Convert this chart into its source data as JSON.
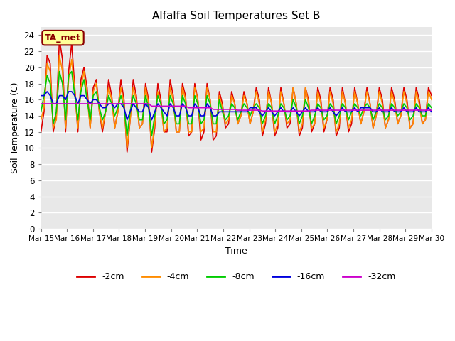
{
  "title": "Alfalfa Soil Temperatures Set B",
  "xlabel": "Time",
  "ylabel": "Soil Temperature (C)",
  "ylim": [
    0,
    25
  ],
  "yticks": [
    0,
    2,
    4,
    6,
    8,
    10,
    12,
    14,
    16,
    18,
    20,
    22,
    24
  ],
  "bg_color": "#e8e8e8",
  "fig_color": "#ffffff",
  "annotation_text": "TA_met",
  "annotation_bg": "#ffff99",
  "annotation_border": "#8b0000",
  "series_colors": {
    "-2cm": "#dd0000",
    "-4cm": "#ff8c00",
    "-8cm": "#00cc00",
    "-16cm": "#0000dd",
    "-32cm": "#cc00cc"
  },
  "legend_labels": [
    "-2cm",
    "-4cm",
    "-8cm",
    "-16cm",
    "-32cm"
  ],
  "x_tick_labels": [
    "Mar 15",
    "Mar 16",
    "Mar 17",
    "Mar 18",
    "Mar 19",
    "Mar 20",
    "Mar 21",
    "Mar 22",
    "Mar 23",
    "Mar 24",
    "Mar 25",
    "Mar 26",
    "Mar 27",
    "Mar 28",
    "Mar 29",
    "Mar 30"
  ],
  "n_days": 16,
  "points_per_day": 8,
  "t_2cm": [
    12.0,
    14.5,
    21.5,
    20.5,
    12.0,
    14.0,
    23.5,
    21.0,
    12.0,
    19.5,
    23.0,
    17.5,
    12.0,
    18.5,
    20.0,
    17.5,
    12.5,
    17.5,
    18.5,
    14.5,
    12.0,
    14.5,
    18.5,
    16.5,
    12.5,
    14.5,
    18.5,
    16.0,
    9.5,
    13.5,
    18.5,
    16.5,
    12.5,
    13.0,
    18.0,
    16.0,
    9.5,
    12.5,
    18.0,
    16.0,
    12.0,
    12.0,
    18.5,
    16.5,
    12.0,
    12.0,
    18.0,
    16.5,
    11.5,
    12.0,
    18.0,
    16.0,
    11.0,
    12.0,
    18.0,
    16.0,
    11.0,
    11.5,
    17.0,
    15.5,
    12.5,
    13.0,
    17.0,
    15.5,
    13.0,
    14.0,
    17.0,
    15.5,
    13.0,
    14.5,
    17.5,
    16.0,
    11.5,
    13.0,
    17.5,
    15.5,
    11.5,
    12.5,
    17.5,
    15.5,
    12.5,
    13.0,
    17.5,
    15.5,
    11.5,
    12.5,
    17.5,
    16.0,
    12.0,
    13.0,
    17.5,
    16.0,
    12.0,
    13.5,
    17.5,
    16.0,
    11.5,
    12.5,
    17.5,
    15.5,
    12.0,
    13.0,
    17.5,
    15.5,
    13.0,
    14.5,
    17.5,
    15.5,
    12.5,
    14.0,
    17.5,
    16.0,
    12.5,
    13.5,
    17.5,
    16.0,
    13.0,
    14.0,
    17.5,
    16.0,
    12.5,
    13.0,
    17.5,
    16.0,
    13.0,
    13.5,
    17.5,
    16.5
  ],
  "t_4cm": [
    13.5,
    15.0,
    20.5,
    19.5,
    12.5,
    13.5,
    21.5,
    19.5,
    12.5,
    18.5,
    21.0,
    17.0,
    12.5,
    17.5,
    19.5,
    16.5,
    12.5,
    17.0,
    18.0,
    14.5,
    12.5,
    14.5,
    17.5,
    16.0,
    12.5,
    14.5,
    17.5,
    15.5,
    10.0,
    13.5,
    17.5,
    16.0,
    12.5,
    13.0,
    17.5,
    15.5,
    10.0,
    13.0,
    17.0,
    15.5,
    12.0,
    12.5,
    17.5,
    16.0,
    12.0,
    12.0,
    17.5,
    16.0,
    12.0,
    12.0,
    17.5,
    16.0,
    12.0,
    12.5,
    17.5,
    16.0,
    12.0,
    12.0,
    16.5,
    15.0,
    13.0,
    13.5,
    16.5,
    15.5,
    13.0,
    14.0,
    16.5,
    15.5,
    13.0,
    14.5,
    17.0,
    15.5,
    12.0,
    13.5,
    17.0,
    15.5,
    12.0,
    13.0,
    17.0,
    15.5,
    13.0,
    13.5,
    17.5,
    15.5,
    12.0,
    13.0,
    17.5,
    15.5,
    12.5,
    13.0,
    17.0,
    15.5,
    12.5,
    13.5,
    17.0,
    15.5,
    12.0,
    13.0,
    17.0,
    15.5,
    12.5,
    13.5,
    17.0,
    15.5,
    13.0,
    14.5,
    17.0,
    15.5,
    12.5,
    14.0,
    17.0,
    15.5,
    12.5,
    13.5,
    17.0,
    15.5,
    13.0,
    14.0,
    17.0,
    15.5,
    12.5,
    13.0,
    17.0,
    15.5,
    13.0,
    13.5,
    17.0,
    16.0
  ],
  "t_8cm": [
    14.5,
    16.5,
    19.0,
    18.0,
    13.0,
    14.5,
    19.5,
    18.0,
    13.5,
    19.0,
    19.5,
    16.5,
    13.5,
    17.0,
    18.5,
    16.0,
    13.5,
    16.5,
    17.0,
    15.0,
    13.5,
    14.5,
    16.5,
    15.5,
    14.0,
    15.0,
    16.5,
    15.0,
    11.5,
    14.5,
    16.5,
    15.5,
    13.5,
    13.5,
    16.5,
    15.0,
    11.5,
    14.0,
    16.5,
    15.5,
    13.0,
    13.5,
    16.5,
    15.5,
    13.0,
    13.0,
    16.5,
    15.5,
    13.0,
    13.0,
    16.5,
    15.5,
    13.0,
    13.5,
    16.5,
    15.5,
    13.0,
    13.0,
    16.0,
    14.5,
    13.5,
    14.0,
    15.5,
    15.0,
    13.5,
    14.5,
    15.5,
    15.0,
    14.0,
    15.0,
    15.5,
    15.0,
    13.0,
    14.0,
    15.5,
    15.0,
    13.0,
    14.0,
    15.5,
    15.0,
    13.5,
    14.0,
    16.0,
    15.0,
    13.0,
    14.0,
    16.0,
    15.0,
    13.0,
    14.0,
    15.5,
    15.0,
    13.5,
    14.0,
    15.5,
    15.0,
    13.0,
    14.0,
    15.5,
    15.0,
    13.5,
    14.5,
    15.5,
    15.0,
    14.0,
    15.0,
    15.5,
    15.0,
    13.5,
    14.5,
    15.5,
    15.0,
    13.5,
    14.0,
    15.5,
    15.0,
    14.0,
    14.5,
    15.5,
    15.0,
    13.5,
    14.0,
    15.5,
    15.0,
    14.0,
    14.0,
    15.5,
    15.0
  ],
  "t_16cm": [
    16.5,
    16.5,
    17.0,
    16.5,
    15.5,
    15.5,
    16.5,
    16.5,
    16.0,
    17.0,
    17.0,
    16.5,
    15.5,
    16.5,
    16.5,
    16.0,
    15.5,
    16.0,
    16.0,
    15.5,
    15.0,
    15.0,
    15.5,
    15.5,
    15.0,
    15.5,
    15.5,
    15.0,
    13.5,
    14.5,
    15.5,
    15.0,
    14.5,
    14.5,
    15.5,
    15.0,
    13.5,
    14.5,
    15.5,
    15.0,
    14.5,
    14.0,
    15.5,
    15.0,
    14.0,
    14.0,
    15.5,
    15.0,
    14.0,
    14.0,
    15.5,
    15.0,
    14.0,
    14.0,
    15.5,
    15.0,
    14.0,
    14.0,
    14.5,
    14.5,
    14.5,
    14.5,
    14.5,
    14.5,
    14.5,
    14.5,
    14.5,
    14.5,
    15.0,
    15.0,
    15.0,
    14.5,
    14.0,
    14.5,
    15.0,
    14.5,
    14.0,
    14.5,
    15.0,
    14.5,
    14.5,
    14.5,
    15.0,
    14.5,
    14.0,
    14.5,
    15.0,
    14.5,
    14.5,
    14.5,
    15.0,
    14.5,
    14.5,
    14.5,
    15.0,
    14.5,
    14.0,
    14.5,
    15.0,
    14.5,
    14.5,
    14.5,
    15.0,
    14.5,
    15.0,
    15.0,
    15.0,
    15.0,
    14.5,
    14.5,
    15.0,
    14.5,
    14.5,
    14.5,
    15.0,
    14.5,
    14.5,
    14.5,
    15.0,
    14.5,
    14.5,
    14.5,
    15.0,
    14.5,
    14.5,
    14.5,
    15.0,
    14.5
  ],
  "t_32cm": [
    15.5,
    15.5,
    15.5,
    15.5,
    15.5,
    15.5,
    15.5,
    15.5,
    15.5,
    15.5,
    15.5,
    15.5,
    15.5,
    15.5,
    15.5,
    15.5,
    15.5,
    15.5,
    15.5,
    15.5,
    15.5,
    15.5,
    15.5,
    15.5,
    15.5,
    15.5,
    15.5,
    15.5,
    15.5,
    15.5,
    15.5,
    15.5,
    15.5,
    15.5,
    15.5,
    15.5,
    15.2,
    15.2,
    15.2,
    15.2,
    15.2,
    15.2,
    15.2,
    15.2,
    15.2,
    15.2,
    15.2,
    15.2,
    15.0,
    15.0,
    15.0,
    15.0,
    15.0,
    15.0,
    15.0,
    15.0,
    14.8,
    14.8,
    14.8,
    14.8,
    14.8,
    14.8,
    14.8,
    14.8,
    14.7,
    14.7,
    14.7,
    14.7,
    14.7,
    14.7,
    14.7,
    14.7,
    14.6,
    14.6,
    14.6,
    14.6,
    14.6,
    14.6,
    14.6,
    14.6,
    14.6,
    14.6,
    14.6,
    14.6,
    14.6,
    14.6,
    14.6,
    14.6,
    14.7,
    14.7,
    14.7,
    14.7,
    14.7,
    14.7,
    14.7,
    14.7,
    14.7,
    14.7,
    14.7,
    14.7,
    14.7,
    14.7,
    14.7,
    14.7,
    14.7,
    14.7,
    14.7,
    14.7,
    14.7,
    14.7,
    14.7,
    14.7,
    14.7,
    14.7,
    14.7,
    14.7,
    14.7,
    14.7,
    14.7,
    14.7,
    14.7,
    14.7,
    14.7,
    14.7,
    14.7,
    14.7,
    14.7,
    14.7
  ]
}
